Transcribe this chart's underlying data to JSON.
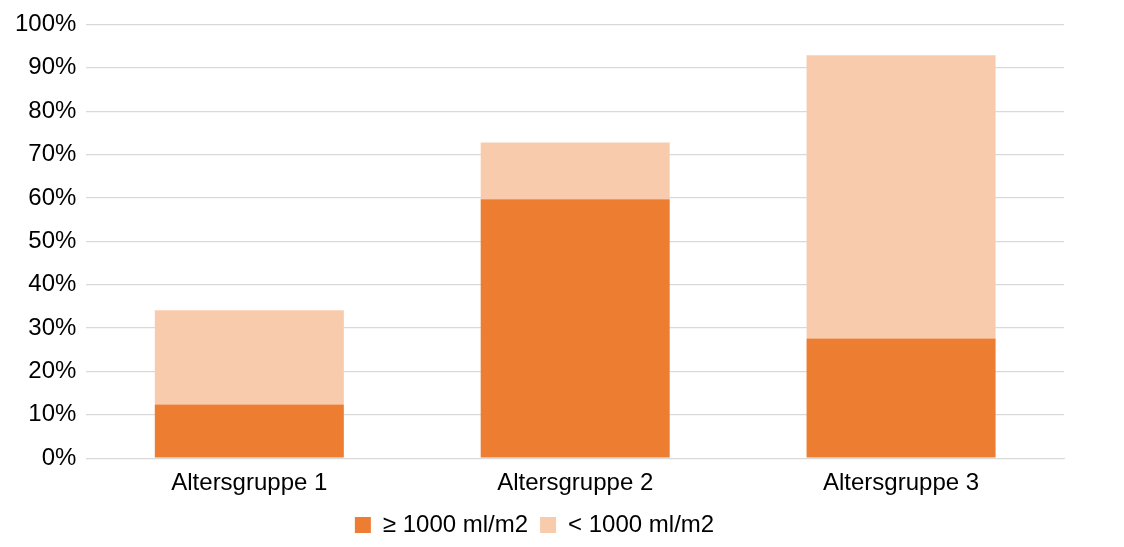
{
  "chart_data": {
    "type": "bar",
    "stacked": true,
    "categories": [
      "Altersgruppe 1",
      "Altersgruppe 2",
      "Altersgruppe 3"
    ],
    "series": [
      {
        "name": "≥ 1000 ml/m2",
        "color": "#ed7d31",
        "values": [
          12.4,
          59.7,
          27.6
        ]
      },
      {
        "name": "< 1000 ml/m2",
        "color": "#f8cbad",
        "values": [
          21.7,
          13.1,
          65.3
        ]
      }
    ],
    "ylim": [
      0,
      100
    ],
    "yticks": [
      {
        "value": 0,
        "label": "0%"
      },
      {
        "value": 10,
        "label": "10%"
      },
      {
        "value": 20,
        "label": "20%"
      },
      {
        "value": 30,
        "label": "30%"
      },
      {
        "value": 40,
        "label": "40%"
      },
      {
        "value": 50,
        "label": "50%"
      },
      {
        "value": 60,
        "label": "60%"
      },
      {
        "value": 70,
        "label": "70%"
      },
      {
        "value": 80,
        "label": "80%"
      },
      {
        "value": 90,
        "label": "90%"
      },
      {
        "value": 100,
        "label": "100%"
      }
    ],
    "grid": "y",
    "legend": "bottom"
  }
}
